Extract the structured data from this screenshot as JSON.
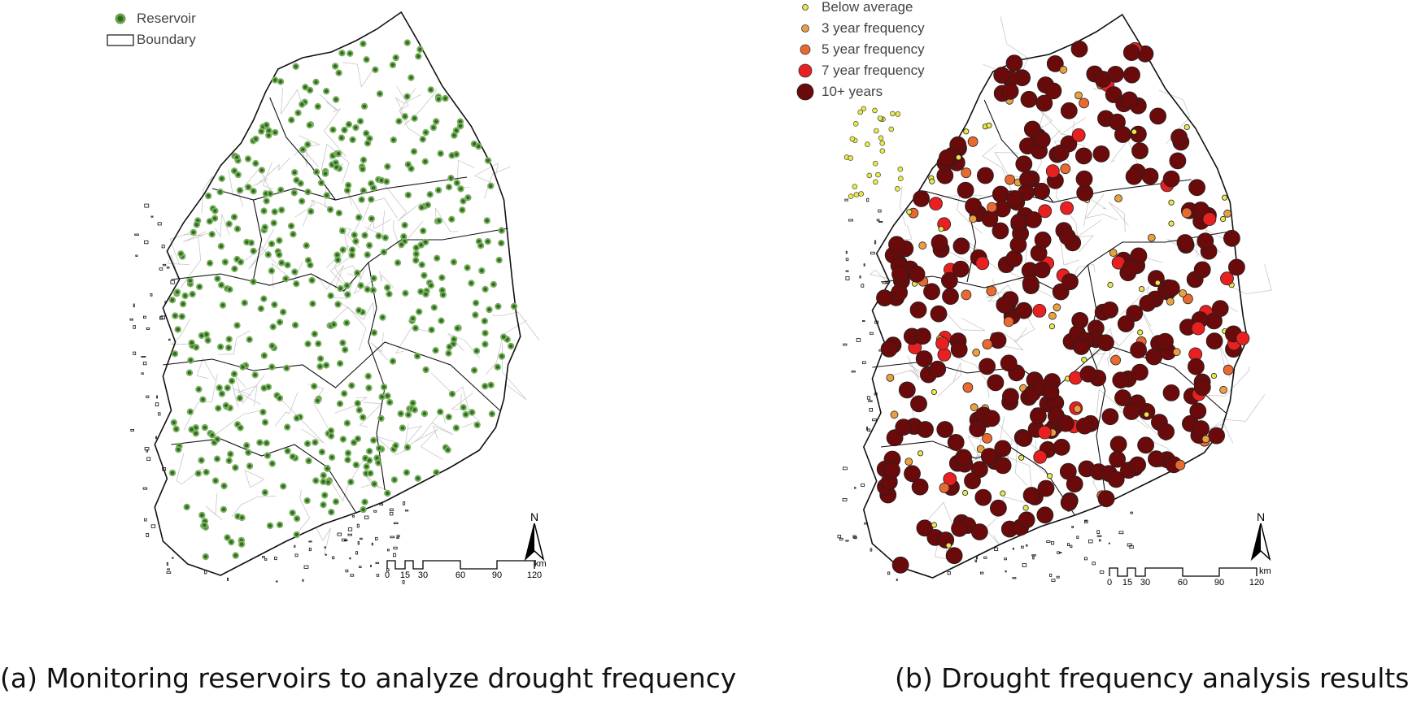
{
  "panel_a": {
    "legend": [
      {
        "symbol": "reservoir-dot",
        "label": "Reservoir"
      },
      {
        "symbol": "boundary-box",
        "label": "Boundary"
      }
    ],
    "caption": "(a) Monitoring reservoirs to analyze drought frequency",
    "north_label": "N",
    "scale": {
      "ticks": [
        "0",
        "15",
        "30",
        "60",
        "90",
        "120"
      ],
      "unit": "km"
    }
  },
  "panel_b": {
    "legend": [
      {
        "symbol": "below-average-dot",
        "label": "Below average"
      },
      {
        "symbol": "3yr-dot",
        "label": "3 year frequency"
      },
      {
        "symbol": "5yr-dot",
        "label": "5 year frequency"
      },
      {
        "symbol": "7yr-dot",
        "label": "7 year frequency"
      },
      {
        "symbol": "10yr-dot",
        "label": "10+ years"
      }
    ],
    "caption": "(b) Drought frequency analysis results",
    "north_label": "N",
    "scale": {
      "ticks": [
        "0",
        "15",
        "30",
        "60",
        "90",
        "120"
      ],
      "unit": "km"
    }
  },
  "colors": {
    "reservoir": "#2e6b1e",
    "below_average": "#e8e84a",
    "freq_3yr": "#e8a040",
    "freq_5yr": "#e86a30",
    "freq_7yr": "#e82020",
    "freq_10yr": "#6a0a0a",
    "boundary": "#111111",
    "subboundary": "#c8c8c8"
  }
}
